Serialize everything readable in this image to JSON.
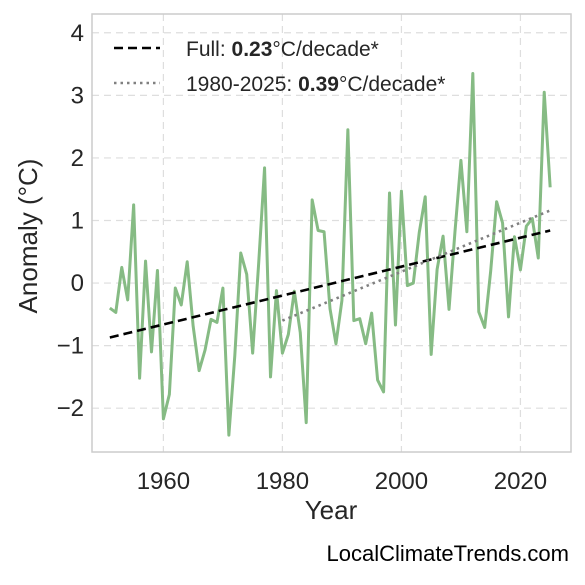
{
  "chart_data": {
    "type": "line",
    "xlabel": "Year",
    "ylabel": "Anomaly (°C)",
    "xlim": [
      1948,
      2028.5
    ],
    "ylim": [
      -2.7,
      4.3
    ],
    "x_ticks": [
      1960,
      1980,
      2000,
      2020
    ],
    "y_ticks": [
      -2,
      -1,
      0,
      1,
      2,
      3,
      4
    ],
    "y_tick_labels": [
      "−2",
      "−1",
      "0",
      "1",
      "2",
      "3",
      "4"
    ],
    "grid": true,
    "legend_position": "top-left",
    "series": [
      {
        "kind": "anomaly",
        "color": "#86bb84",
        "x": [
          1951,
          1952,
          1953,
          1954,
          1955,
          1956,
          1957,
          1958,
          1959,
          1960,
          1961,
          1962,
          1963,
          1964,
          1965,
          1966,
          1967,
          1968,
          1969,
          1970,
          1971,
          1972,
          1973,
          1974,
          1975,
          1976,
          1977,
          1978,
          1979,
          1980,
          1981,
          1982,
          1983,
          1984,
          1985,
          1986,
          1987,
          1988,
          1989,
          1990,
          1991,
          1992,
          1993,
          1994,
          1995,
          1996,
          1997,
          1998,
          1999,
          2000,
          2001,
          2002,
          2003,
          2004,
          2005,
          2006,
          2007,
          2008,
          2009,
          2010,
          2011,
          2012,
          2013,
          2014,
          2015,
          2016,
          2017,
          2018,
          2019,
          2020,
          2021,
          2022,
          2023,
          2024,
          2025
        ],
        "values": [
          -0.4,
          -0.47,
          0.25,
          -0.27,
          1.25,
          -1.52,
          0.35,
          -1.1,
          0.2,
          -2.17,
          -1.78,
          -0.08,
          -0.35,
          0.34,
          -0.69,
          -1.4,
          -1.07,
          -0.58,
          -0.63,
          -0.08,
          -2.43,
          -1.16,
          0.48,
          0.14,
          -1.12,
          0.3,
          1.84,
          -1.5,
          -0.12,
          -1.12,
          -0.82,
          -0.13,
          -0.79,
          -2.23,
          1.33,
          0.84,
          0.82,
          -0.41,
          -0.97,
          -0.28,
          2.45,
          -0.6,
          -0.57,
          -0.97,
          -0.48,
          -1.55,
          -1.74,
          1.44,
          -0.67,
          1.47,
          -0.04,
          0.0,
          0.81,
          1.38,
          -1.14,
          0.22,
          0.75,
          -0.42,
          0.82,
          1.96,
          0.82,
          3.35,
          -0.46,
          -0.71,
          0.19,
          1.3,
          0.96,
          -0.54,
          0.74,
          0.21,
          0.91,
          1.03,
          0.4,
          3.05,
          1.53
        ]
      },
      {
        "kind": "trend-full",
        "color": "#000000",
        "x": [
          1951,
          2025
        ],
        "values": [
          -0.87,
          0.84
        ]
      },
      {
        "kind": "trend-recent",
        "color": "#808080",
        "x": [
          1980,
          2025
        ],
        "values": [
          -0.6,
          1.16
        ]
      }
    ],
    "legend": [
      {
        "prefix": "Full: ",
        "bold": "0.23",
        "suffix": "°C/decade*",
        "style": "dashed",
        "color": "#000000"
      },
      {
        "prefix": "1980-2025: ",
        "bold": "0.39",
        "suffix": "°C/decade*",
        "style": "dotted",
        "color": "#808080"
      }
    ]
  },
  "watermark": "LocalClimateTrends.com"
}
